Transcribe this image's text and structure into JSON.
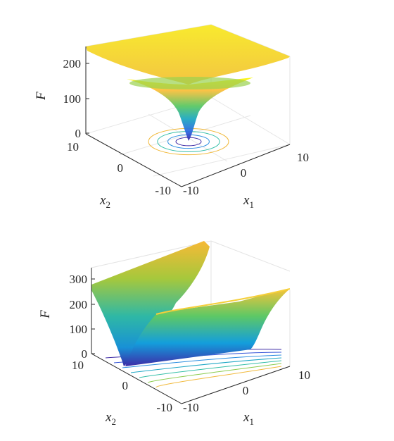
{
  "chart_data": [
    {
      "type": "surface",
      "description_of_function": "radially symmetric well",
      "xlabel": "x",
      "xlabel_sub": "1",
      "ylabel": "x",
      "ylabel_sub": "2",
      "zlabel": "F",
      "xlim": [
        -10,
        10
      ],
      "ylim": [
        -10,
        10
      ],
      "zlim": [
        0,
        250
      ],
      "xticks": [
        "-10",
        "0",
        "10"
      ],
      "yticks": [
        "10",
        "0",
        "-10"
      ],
      "zticks": [
        "0",
        "100",
        "200"
      ],
      "min_value": 0,
      "corner_value": 245,
      "colormap": "parula",
      "contour_levels": [
        15,
        40,
        90,
        150
      ],
      "grid": true
    },
    {
      "type": "surface",
      "description_of_function": "ridge-shaped surface with folded valley",
      "xlabel": "x",
      "xlabel_sub": "1",
      "ylabel": "x",
      "ylabel_sub": "2",
      "zlabel": "F",
      "xlim": [
        -10,
        10
      ],
      "ylim": [
        -10,
        10
      ],
      "zlim": [
        0,
        350
      ],
      "xticks": [
        "-10",
        "0",
        "10"
      ],
      "yticks": [
        "10",
        "0",
        "-10"
      ],
      "zticks": [
        "0",
        "100",
        "200",
        "300"
      ],
      "max_value": 345,
      "colormap": "parula",
      "grid": true
    }
  ]
}
